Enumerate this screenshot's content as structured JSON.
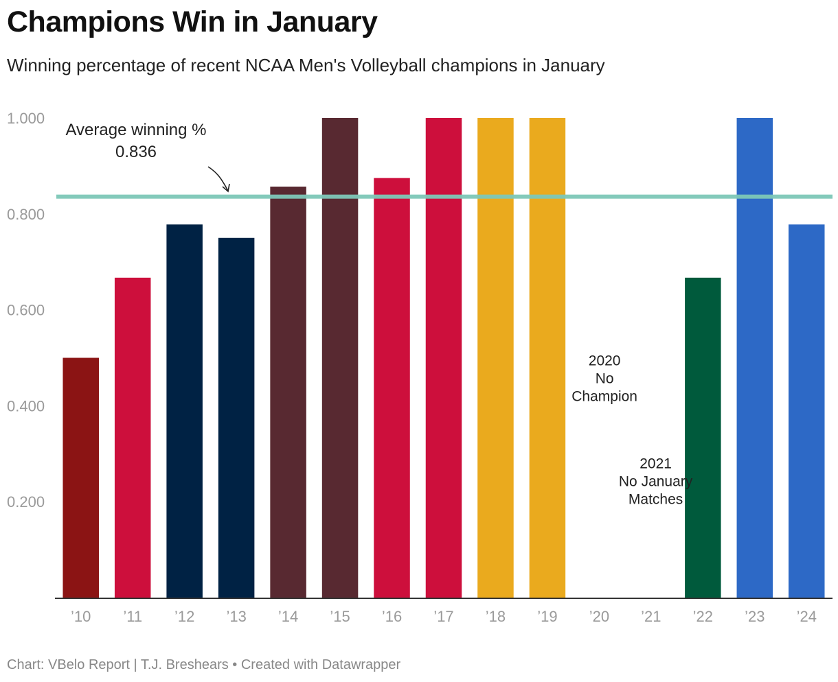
{
  "header": {
    "title": "Champions Win in January",
    "subtitle": "Winning percentage of recent NCAA Men's Volleyball champions in January"
  },
  "footer": {
    "credit": "Chart: VBelo Report | T.J. Breshears • Created with Datawrapper"
  },
  "colors": {
    "axis": "#333333",
    "tick_text": "#9a9a9a",
    "average_line": "#7ec8b8"
  },
  "chart_data": {
    "type": "bar",
    "title": "Champions Win in January",
    "subtitle": "Winning percentage of recent NCAA Men's Volleyball champions in January",
    "categories": [
      "’10",
      "’11",
      "’12",
      "’13",
      "’14",
      "’15",
      "’16",
      "’17",
      "’18",
      "’19",
      "’20",
      "’21",
      "’22",
      "’23",
      "’24"
    ],
    "values": [
      0.5,
      0.667,
      0.778,
      0.75,
      0.857,
      1.0,
      0.875,
      1.0,
      1.0,
      1.0,
      null,
      null,
      0.667,
      1.0,
      0.778
    ],
    "bar_colors": [
      "#8b1414",
      "#cd0f3c",
      "#002244",
      "#002244",
      "#582931",
      "#582931",
      "#cd0f3c",
      "#cd0f3c",
      "#eaaa1e",
      "#eaaa1e",
      null,
      null,
      "#005a3c",
      "#2d69c6",
      "#2d69c6"
    ],
    "y_ticks": [
      {
        "value": 1.0,
        "label": "1.000"
      },
      {
        "value": 0.8,
        "label": "0.800"
      },
      {
        "value": 0.6,
        "label": "0.600"
      },
      {
        "value": 0.4,
        "label": "0.400"
      },
      {
        "value": 0.2,
        "label": "0.200"
      }
    ],
    "ylim": [
      0,
      1.0
    ],
    "reference_line": {
      "value": 0.836,
      "label_lines": [
        "Average winning %",
        "0.836"
      ]
    },
    "annotations": [
      {
        "category": "’20",
        "value": 0.45,
        "lines": [
          "2020",
          "No",
          "Champion"
        ]
      },
      {
        "category": "’21",
        "value": 0.235,
        "lines": [
          "2021",
          "No January",
          "Matches"
        ]
      }
    ],
    "grid": false,
    "xlabel": "",
    "ylabel": ""
  }
}
